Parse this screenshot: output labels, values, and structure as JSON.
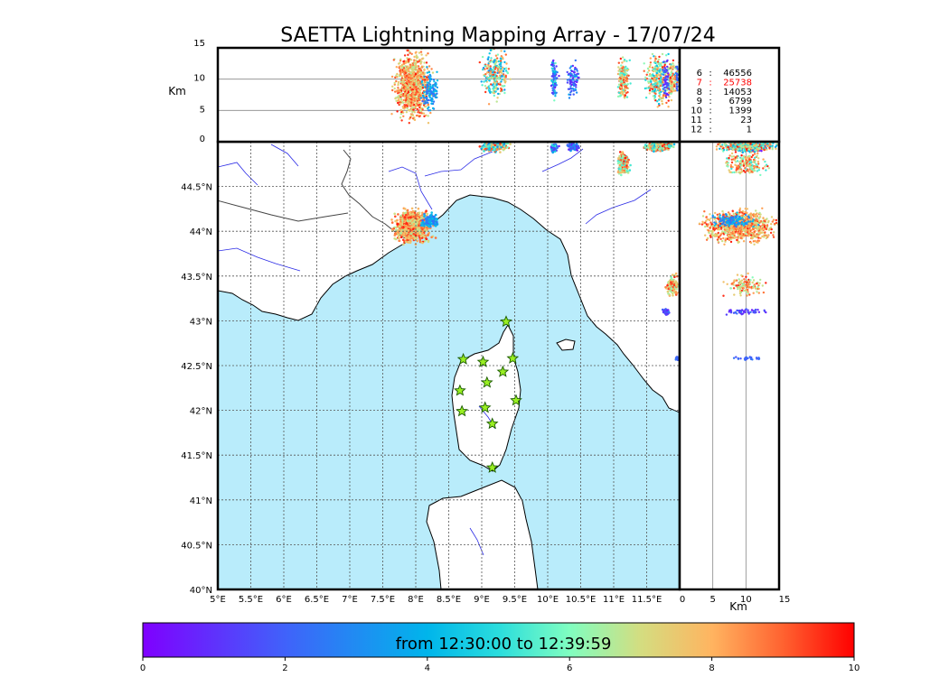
{
  "title": "SAETTA Lightning Mapping Array - 17/07/24",
  "colors": {
    "sea": "#b9ecfb",
    "land": "#ffffff",
    "rivers": "#2a2ae6",
    "borders": "#444444",
    "station_fill": "#99ee22",
    "count_highlight": "#ff0000"
  },
  "chart_data": {
    "type": "scatter",
    "map": {
      "lon_range": [
        5.0,
        12.0
      ],
      "lat_range": [
        40.0,
        45.0
      ],
      "lon_ticks": [
        "5°E",
        "5.5°E",
        "6°E",
        "6.5°E",
        "7°E",
        "7.5°E",
        "8°E",
        "8.5°E",
        "9°E",
        "9.5°E",
        "10°E",
        "10.5°E",
        "11°E",
        "11.5°E"
      ],
      "lat_ticks": [
        "40°N",
        "40.5°N",
        "41°N",
        "41.5°N",
        "42°N",
        "42.5°N",
        "43°N",
        "43.5°N",
        "44°N",
        "44.5°N"
      ],
      "grid": true
    },
    "altitude_panel": {
      "ylabel": "Km",
      "ylim": [
        0,
        15
      ],
      "ticks": [
        "0",
        "5",
        "10",
        "15"
      ]
    },
    "side_panel": {
      "xlabel": "Km",
      "xlim": [
        0,
        15
      ],
      "ticks": [
        "0",
        "5",
        "10",
        "15"
      ]
    },
    "stations": [
      [
        9.37,
        42.99
      ],
      [
        8.72,
        42.57
      ],
      [
        9.02,
        42.54
      ],
      [
        9.47,
        42.58
      ],
      [
        9.32,
        42.43
      ],
      [
        9.08,
        42.31
      ],
      [
        8.67,
        42.22
      ],
      [
        9.52,
        42.11
      ],
      [
        8.7,
        41.99
      ],
      [
        9.05,
        42.03
      ],
      [
        9.16,
        41.85
      ],
      [
        9.16,
        41.36
      ]
    ],
    "clusters": [
      {
        "lon": 7.95,
        "lat": 44.06,
        "lon_spread": 0.26,
        "lat_spread": 0.17,
        "alt_min": 3,
        "alt_max": 15,
        "alt_center": 9,
        "time_min": 6.5,
        "time_max": 9.8,
        "n": 950
      },
      {
        "lon": 8.22,
        "lat": 44.12,
        "lon_spread": 0.12,
        "lat_spread": 0.07,
        "alt_min": 5,
        "alt_max": 12,
        "alt_center": 8,
        "time_min": 2.0,
        "time_max": 4.5,
        "n": 120
      },
      {
        "lon": 9.2,
        "lat": 44.96,
        "lon_spread": 0.2,
        "lat_spread": 0.06,
        "alt_min": 6,
        "alt_max": 15,
        "alt_center": 11,
        "time_min": 3.0,
        "time_max": 9.5,
        "n": 260
      },
      {
        "lon": 10.1,
        "lat": 44.93,
        "lon_spread": 0.05,
        "lat_spread": 0.05,
        "alt_min": 6,
        "alt_max": 13,
        "alt_center": 10,
        "time_min": 0.3,
        "time_max": 6.0,
        "n": 90
      },
      {
        "lon": 10.38,
        "lat": 44.95,
        "lon_spread": 0.1,
        "lat_spread": 0.06,
        "alt_min": 7,
        "alt_max": 13,
        "alt_center": 10,
        "time_min": 0.2,
        "time_max": 4.0,
        "n": 80
      },
      {
        "lon": 11.15,
        "lat": 44.75,
        "lon_spread": 0.09,
        "lat_spread": 0.12,
        "alt_min": 7,
        "alt_max": 14,
        "alt_center": 10,
        "time_min": 5.0,
        "time_max": 9.8,
        "n": 180
      },
      {
        "lon": 11.67,
        "lat": 44.95,
        "lon_spread": 0.2,
        "lat_spread": 0.05,
        "alt_min": 5,
        "alt_max": 14,
        "alt_center": 10,
        "time_min": 4.0,
        "time_max": 9.8,
        "n": 320
      },
      {
        "lon": 11.9,
        "lat": 43.4,
        "lon_spread": 0.1,
        "lat_spread": 0.1,
        "alt_min": 6,
        "alt_max": 13,
        "alt_center": 10,
        "time_min": 6.0,
        "time_max": 9.8,
        "n": 120
      },
      {
        "lon": 11.8,
        "lat": 43.1,
        "lon_spread": 0.05,
        "lat_spread": 0.03,
        "alt_min": 6,
        "alt_max": 13,
        "alt_center": 10,
        "time_min": 0.3,
        "time_max": 2.5,
        "n": 50
      },
      {
        "lon": 11.96,
        "lat": 42.58,
        "lon_spread": 0.02,
        "lat_spread": 0.02,
        "alt_min": 6,
        "alt_max": 12,
        "alt_center": 10,
        "time_min": 1.5,
        "time_max": 2.5,
        "n": 30
      }
    ],
    "counts": [
      {
        "key": "6",
        "value": "46556",
        "highlight": false
      },
      {
        "key": "7",
        "value": "25738",
        "highlight": true
      },
      {
        "key": "8",
        "value": "14053",
        "highlight": false
      },
      {
        "key": "9",
        "value": "6799",
        "highlight": false
      },
      {
        "key": "10",
        "value": "1399",
        "highlight": false
      },
      {
        "key": "11",
        "value": "23",
        "highlight": false
      },
      {
        "key": "12",
        "value": "1",
        "highlight": false
      }
    ],
    "colorbar": {
      "label": "from 12:30:00 to 12:39:59",
      "ticks": [
        "0",
        "2",
        "4",
        "6",
        "8",
        "10"
      ],
      "range": [
        0,
        10
      ],
      "colormap": "rainbow"
    }
  }
}
